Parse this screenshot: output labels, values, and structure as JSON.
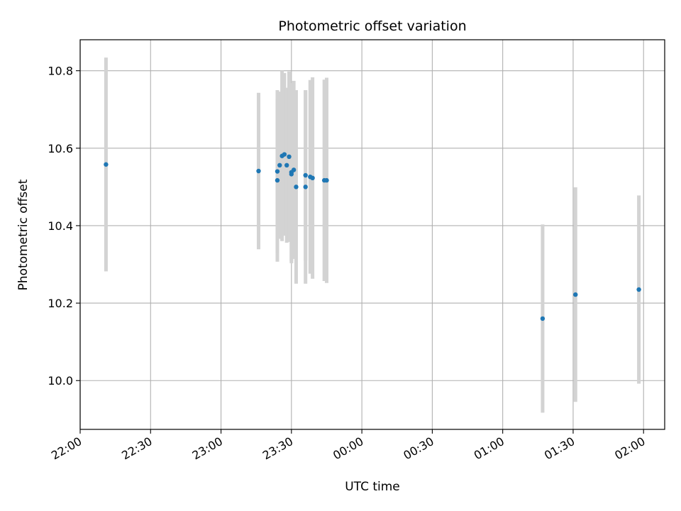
{
  "chart_data": {
    "type": "scatter",
    "title": "Photometric offset variation",
    "xlabel": "UTC time",
    "ylabel": "Photometric offset",
    "x_ticks": [
      "22:00",
      "22:30",
      "23:00",
      "23:30",
      "00:00",
      "00:30",
      "01:00",
      "01:30",
      "02:00"
    ],
    "x_tick_minutes": [
      0,
      30,
      60,
      90,
      120,
      150,
      180,
      210,
      240
    ],
    "y_ticks": [
      "10.0",
      "10.2",
      "10.4",
      "10.6",
      "10.8"
    ],
    "xlim_minutes": [
      0,
      249
    ],
    "ylim": [
      9.874,
      10.88
    ],
    "grid": true,
    "point_color": "#1f77b4",
    "errorbar_color": "#d3d3d3",
    "points": [
      {
        "t": "22:11",
        "y": 10.558,
        "err": 0.276
      },
      {
        "t": "23:16",
        "y": 10.541,
        "err": 0.202
      },
      {
        "t": "23:24",
        "y": 10.517,
        "err": 0.21
      },
      {
        "t": "23:24",
        "y": 10.54,
        "err": 0.21
      },
      {
        "t": "23:25",
        "y": 10.556,
        "err": 0.19
      },
      {
        "t": "23:26",
        "y": 10.58,
        "err": 0.22
      },
      {
        "t": "23:27",
        "y": 10.584,
        "err": 0.21
      },
      {
        "t": "23:28",
        "y": 10.556,
        "err": 0.2
      },
      {
        "t": "23:29",
        "y": 10.578,
        "err": 0.22
      },
      {
        "t": "23:30",
        "y": 10.538,
        "err": 0.23
      },
      {
        "t": "23:30",
        "y": 10.533,
        "err": 0.23
      },
      {
        "t": "23:31",
        "y": 10.544,
        "err": 0.23
      },
      {
        "t": "23:32",
        "y": 10.5,
        "err": 0.25
      },
      {
        "t": "23:36",
        "y": 10.53,
        "err": 0.22
      },
      {
        "t": "23:36",
        "y": 10.5,
        "err": 0.25
      },
      {
        "t": "23:38",
        "y": 10.526,
        "err": 0.25
      },
      {
        "t": "23:39",
        "y": 10.523,
        "err": 0.26
      },
      {
        "t": "23:44",
        "y": 10.517,
        "err": 0.26
      },
      {
        "t": "23:45",
        "y": 10.517,
        "err": 0.265
      },
      {
        "t": "01:17",
        "y": 10.16,
        "err": 0.243
      },
      {
        "t": "01:31",
        "y": 10.222,
        "err": 0.277
      },
      {
        "t": "01:58",
        "y": 10.235,
        "err": 0.243
      }
    ]
  }
}
